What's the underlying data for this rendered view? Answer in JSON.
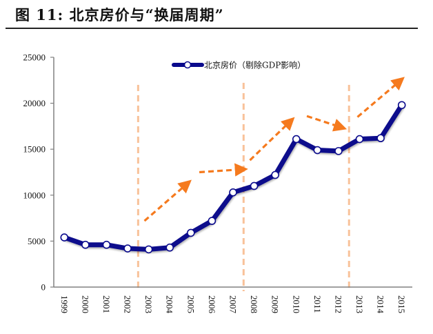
{
  "figure": {
    "title": "图  11:  北京房价与“换届周期”"
  },
  "colors": {
    "series": "#0a0a8c",
    "marker_fill": "#ffffff",
    "cycle_line": "#f8c29a",
    "trend_arrow": "#f57a1e",
    "axis": "#808080"
  },
  "chart_data": {
    "type": "line",
    "title": "",
    "xlabel": "",
    "ylabel": "",
    "categories": [
      "1999",
      "2000",
      "2001",
      "2002",
      "2003",
      "2004",
      "2005",
      "2006",
      "2007",
      "2008",
      "2009",
      "2010",
      "2011",
      "2012",
      "2013",
      "2014",
      "2015"
    ],
    "series": [
      {
        "name": "北京房价（剔除GDP影响）",
        "values": [
          5400,
          4600,
          4600,
          4200,
          4100,
          4300,
          5900,
          7200,
          10300,
          11000,
          12200,
          16100,
          14900,
          14800,
          16100,
          16200,
          19800
        ]
      }
    ],
    "ylim": [
      0,
      25000
    ],
    "yticks": [
      "0",
      "5000",
      "10000",
      "15000",
      "20000",
      "25000"
    ],
    "ytick_values": [
      0,
      5000,
      10000,
      15000,
      20000,
      25000
    ],
    "grid": false,
    "legend": "top-center",
    "annotations": {
      "cycle_boundaries_between": [
        [
          "2002",
          "2003"
        ],
        [
          "2007",
          "2008"
        ],
        [
          "2012",
          "2013"
        ]
      ],
      "trend_arrows": [
        {
          "from": [
            2002.8,
            7200
          ],
          "to": [
            2004.8,
            11200
          ],
          "direction": "up"
        },
        {
          "from": [
            2005.4,
            12500
          ],
          "to": [
            2007.4,
            12800
          ],
          "direction": "flat"
        },
        {
          "from": [
            2007.8,
            13800
          ],
          "to": [
            2009.7,
            18000
          ],
          "direction": "up"
        },
        {
          "from": [
            2010.5,
            18600
          ],
          "to": [
            2012.1,
            17400
          ],
          "direction": "down"
        },
        {
          "from": [
            2012.9,
            18500
          ],
          "to": [
            2014.9,
            22400
          ],
          "direction": "up"
        }
      ]
    }
  }
}
